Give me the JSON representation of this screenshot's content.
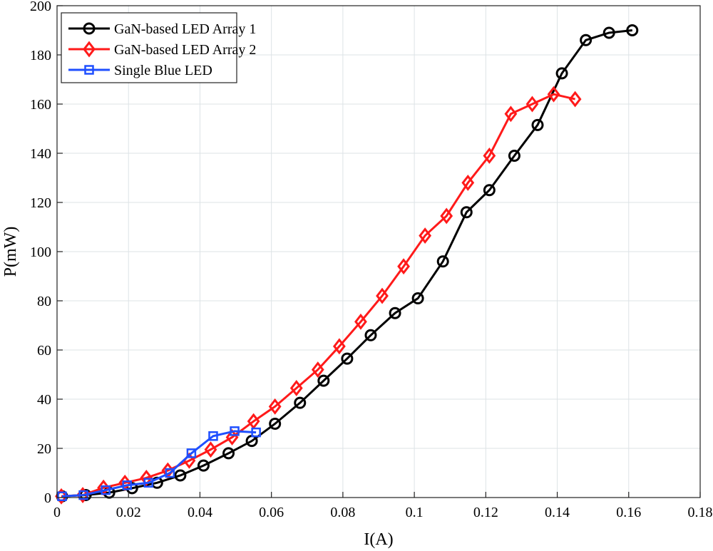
{
  "chart_data": {
    "type": "line",
    "xlabel": "I(A)",
    "ylabel": "P(mW)",
    "xlim": [
      0,
      0.18
    ],
    "ylim": [
      0,
      200
    ],
    "xticks": [
      "0",
      "0.02",
      "0.04",
      "0.06",
      "0.08",
      "0.1",
      "0.12",
      "0.14",
      "0.16",
      "0.18"
    ],
    "yticks": [
      "0",
      "20",
      "40",
      "60",
      "80",
      "100",
      "120",
      "140",
      "160",
      "180",
      "200"
    ],
    "grid": true,
    "legend_placement": "top-left",
    "series": [
      {
        "name": "GaN-based LED Array 1",
        "color": "#000000",
        "marker": "circle",
        "x": [
          0.0014,
          0.008,
          0.0146,
          0.021,
          0.028,
          0.0345,
          0.041,
          0.048,
          0.0545,
          0.061,
          0.068,
          0.0746,
          0.0812,
          0.0878,
          0.0946,
          0.101,
          0.108,
          0.1146,
          0.121,
          0.128,
          0.1345,
          0.1413,
          0.148,
          0.1545,
          0.161
        ],
        "y": [
          0.5,
          1,
          2,
          3.8,
          6,
          9,
          13,
          18,
          23,
          30,
          38.5,
          47.5,
          56.5,
          66,
          75,
          81,
          96,
          116,
          125,
          139,
          151.5,
          172.5,
          186,
          189,
          190
        ]
      },
      {
        "name": "GaN-based LED Array 2",
        "color": "#ff1a1a",
        "marker": "diamond",
        "x": [
          0.0012,
          0.0072,
          0.013,
          0.019,
          0.025,
          0.031,
          0.037,
          0.043,
          0.049,
          0.055,
          0.061,
          0.067,
          0.073,
          0.079,
          0.085,
          0.091,
          0.097,
          0.103,
          0.109,
          0.115,
          0.121,
          0.127,
          0.133,
          0.139,
          0.145
        ],
        "y": [
          0.5,
          1,
          4,
          6,
          8,
          11,
          15,
          19.5,
          24.5,
          31,
          37,
          44.5,
          52,
          61.5,
          71.5,
          82,
          94,
          106.5,
          114.5,
          128,
          139,
          156,
          160,
          164,
          162
        ]
      },
      {
        "name": "Single Blue LED",
        "color": "#1f4fff",
        "marker": "square",
        "x": [
          0.0014,
          0.0074,
          0.0136,
          0.0196,
          0.0256,
          0.0316,
          0.0376,
          0.0437,
          0.0497,
          0.0557
        ],
        "y": [
          0.5,
          1,
          3,
          5,
          6,
          10,
          18,
          25,
          27,
          26.5
        ]
      }
    ]
  }
}
